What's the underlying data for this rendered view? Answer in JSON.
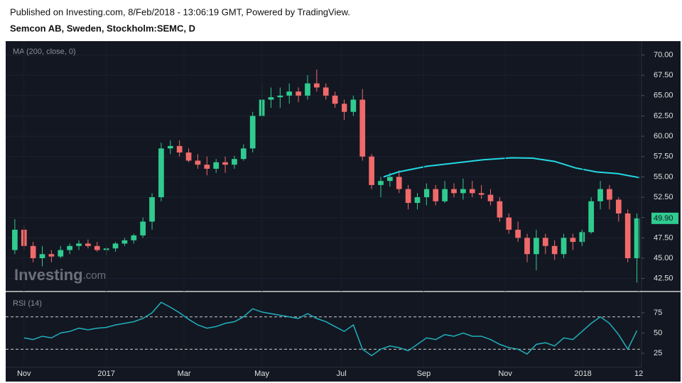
{
  "header": {
    "published": "Published on Investing.com, 8/Feb/2018 - 13:06:19 GMT, Powered by TradingView.",
    "symbol": "Semcon AB, Sweden, Stockholm:SEMC, D"
  },
  "chart_data": [
    {
      "type": "candlestick",
      "watermark": [
        "Investing",
        ".com"
      ],
      "up_color": "#2fcb8f",
      "down_color": "#f06a6a",
      "x": [
        -1,
        0,
        1,
        2,
        3,
        4,
        5,
        6,
        7,
        8,
        9,
        10,
        11,
        12,
        13,
        14,
        15,
        16,
        17,
        18,
        19,
        20,
        21,
        22,
        23,
        24,
        25,
        26,
        27,
        28,
        29,
        30,
        31,
        32,
        33,
        34,
        35,
        36,
        37,
        38,
        39,
        40,
        41,
        42,
        43,
        44,
        45,
        46,
        47,
        48,
        49,
        50,
        51,
        52,
        53,
        54,
        55,
        56,
        57,
        58,
        59,
        60,
        61,
        62,
        63,
        64,
        65,
        66,
        67
      ],
      "open": [
        46,
        48.5,
        46.5,
        45,
        45.5,
        45.2,
        46,
        46.5,
        46.8,
        46.5,
        46,
        46.2,
        46.8,
        47.2,
        47.8,
        49.5,
        52.5,
        58.5,
        58.8,
        58,
        57,
        56.5,
        56,
        56.8,
        56.5,
        57.2,
        58.5,
        62.5,
        64.5,
        64.8,
        65,
        65.5,
        65,
        66.5,
        66,
        65,
        64,
        63,
        64.5,
        57.5,
        54,
        54.5,
        55,
        53.5,
        51.8,
        52.5,
        53.5,
        52,
        53.5,
        53,
        53.5,
        53,
        52.8,
        52,
        50,
        48.5,
        47.5,
        45.5,
        47.5,
        46.5,
        45.5,
        47.5,
        47,
        48.2,
        52,
        53.5,
        52.2,
        50.5,
        45
      ],
      "high": [
        49.8,
        49,
        47,
        46.5,
        46,
        46.5,
        46.8,
        47.2,
        47.3,
        47,
        46.5,
        47,
        47.5,
        48,
        50,
        53,
        59.2,
        59.5,
        59.5,
        58.5,
        57.8,
        57.5,
        57.2,
        57.5,
        57.6,
        59,
        63,
        66.5,
        66,
        66,
        66.5,
        66,
        67.5,
        68.2,
        66.5,
        65.5,
        64.5,
        65,
        65.8,
        57.8,
        55,
        55.5,
        55.8,
        54,
        53,
        54.2,
        54,
        54.5,
        54.2,
        54.8,
        54.5,
        54,
        53.5,
        52.5,
        50.5,
        49.5,
        48,
        48.5,
        48,
        47.2,
        48,
        48,
        48.5,
        52.5,
        54.5,
        54,
        52.5,
        51,
        50.5
      ],
      "low": [
        45.5,
        46,
        44.5,
        44,
        44.5,
        45,
        45.5,
        46,
        46.2,
        45.8,
        45.3,
        45.8,
        46.5,
        46.8,
        47.5,
        48.5,
        52,
        57.8,
        57.5,
        56.8,
        56,
        55.2,
        55.5,
        55.5,
        56,
        57,
        58,
        62,
        63.5,
        63.5,
        64,
        64.2,
        64.5,
        65.5,
        64.5,
        63.5,
        62,
        62.5,
        57,
        53.5,
        52.5,
        53.8,
        53,
        51,
        51,
        51.5,
        51.5,
        51.8,
        52.5,
        52.2,
        52.5,
        52.3,
        51.5,
        49.5,
        48,
        47,
        44.5,
        43.5,
        45.5,
        44.8,
        45,
        46,
        46.5,
        48,
        51,
        51,
        49.5,
        44.5,
        42
      ],
      "close": [
        48.5,
        46.5,
        45,
        45.5,
        45.2,
        46,
        46.5,
        46.8,
        46.5,
        46,
        46.2,
        46.8,
        47.2,
        47.8,
        49.5,
        52.5,
        58.5,
        58.8,
        58,
        57,
        56.5,
        56,
        56.8,
        56.5,
        57.2,
        58.5,
        62.5,
        64.5,
        64.8,
        65,
        65.5,
        65,
        66.5,
        66,
        65,
        64,
        63,
        64.5,
        57.5,
        54,
        54.5,
        55,
        53.5,
        51.8,
        52.5,
        53.5,
        52,
        53.5,
        53,
        53.5,
        53,
        52.8,
        52,
        50,
        48.5,
        47.5,
        45.5,
        47.5,
        46.5,
        45.5,
        47.5,
        47,
        48.2,
        52,
        53.5,
        52.2,
        50.5,
        45,
        49.9
      ],
      "last_price": {
        "value": 49.9,
        "label": "49.90",
        "color": "#2fcb8f"
      },
      "series": [
        {
          "name": "MA (200, close, 0)",
          "color": "#22d8e2",
          "x": [
            39.3,
            40.9,
            44,
            47.1,
            50.2,
            53.3,
            55.6,
            58,
            60.3,
            62.6,
            64.9,
            67.3
          ],
          "values": [
            55.0,
            55.6,
            56.3,
            56.7,
            57.1,
            57.35,
            57.3,
            56.9,
            56.1,
            55.6,
            55.4,
            54.9
          ]
        }
      ],
      "xlim": [
        -2,
        67.5
      ],
      "ylim": [
        40.9,
        71.7
      ],
      "yticks": [
        {
          "value": 42.5,
          "label": "42.50"
        },
        {
          "value": 45,
          "label": "45.00"
        },
        {
          "value": 47.5,
          "label": "47.50"
        },
        {
          "value": 50,
          "label": "50.00"
        },
        {
          "value": 52.5,
          "label": "52.50"
        },
        {
          "value": 55,
          "label": "55.00"
        },
        {
          "value": 57.5,
          "label": "57.50"
        },
        {
          "value": 60,
          "label": "60.00"
        },
        {
          "value": 62.5,
          "label": "62.50"
        },
        {
          "value": 65,
          "label": "65.00"
        },
        {
          "value": 67.5,
          "label": "67.50"
        },
        {
          "value": 70,
          "label": "70.00"
        }
      ],
      "grid": true
    },
    {
      "type": "line",
      "series": [
        {
          "name": "RSI (14)",
          "color": "#1fb0bb",
          "x": [
            0,
            1,
            2,
            3,
            4,
            5,
            6,
            7,
            8,
            9,
            10,
            11,
            12,
            13,
            14,
            15,
            16,
            17,
            18,
            19,
            20,
            21,
            22,
            23,
            24,
            25,
            26,
            27,
            28,
            29,
            30,
            31,
            32,
            33,
            34,
            35,
            36,
            37,
            38,
            39,
            40,
            41,
            42,
            43,
            44,
            45,
            46,
            47,
            48,
            49,
            50,
            51,
            52,
            53,
            54,
            55,
            56,
            57,
            58,
            59,
            60,
            61,
            62,
            63,
            64,
            65,
            66,
            67
          ],
          "values": [
            44,
            42,
            46,
            44,
            50,
            52,
            56,
            54,
            56,
            57,
            60,
            62,
            64,
            68,
            75,
            88,
            82,
            75,
            67,
            60,
            56,
            58,
            62,
            64,
            70,
            80,
            76,
            74,
            72,
            70,
            68,
            74,
            68,
            64,
            58,
            52,
            60,
            30,
            22,
            30,
            34,
            32,
            28,
            36,
            44,
            42,
            48,
            46,
            50,
            46,
            46,
            42,
            36,
            32,
            30,
            24,
            36,
            38,
            34,
            44,
            42,
            52,
            62,
            70,
            62,
            48,
            30,
            53
          ]
        }
      ],
      "bands": [
        30,
        70
      ],
      "xlim": [
        -2,
        67.5
      ],
      "ylim": [
        7.5,
        99.6
      ],
      "yticks": [
        25,
        50,
        75
      ],
      "xticks": [
        {
          "value": 0,
          "label": "Nov"
        },
        {
          "value": 9,
          "label": "2017"
        },
        {
          "value": 17.5,
          "label": "Mar"
        },
        {
          "value": 26,
          "label": "May"
        },
        {
          "value": 34.7,
          "label": "Jul"
        },
        {
          "value": 43.7,
          "label": "Sep"
        },
        {
          "value": 52.6,
          "label": "Nov"
        },
        {
          "value": 61.1,
          "label": "2018"
        },
        {
          "value": 67.2,
          "label": "12"
        }
      ]
    }
  ]
}
